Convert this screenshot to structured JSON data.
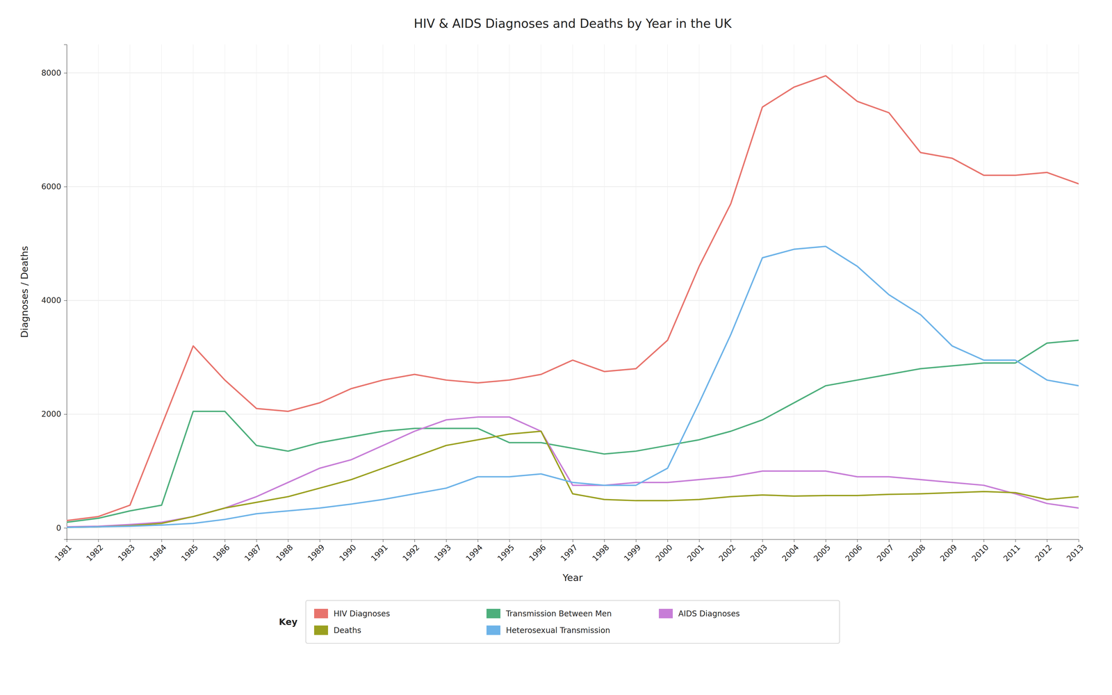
{
  "chart_data": {
    "type": "line",
    "title": "HIV & AIDS Diagnoses and Deaths by Year in the UK",
    "xlabel": "Year",
    "ylabel": "Diagnoses / Deaths",
    "legend_title": "Key",
    "x": [
      1981,
      1982,
      1983,
      1984,
      1985,
      1986,
      1987,
      1988,
      1989,
      1990,
      1991,
      1992,
      1993,
      1994,
      1995,
      1996,
      1997,
      1998,
      1999,
      2000,
      2001,
      2002,
      2003,
      2004,
      2005,
      2006,
      2007,
      2008,
      2009,
      2010,
      2011,
      2012,
      2013
    ],
    "series": [
      {
        "name": "HIV Diagnoses",
        "color": "#E8736C",
        "values": [
          130,
          200,
          400,
          1800,
          3200,
          2600,
          2100,
          2050,
          2200,
          2450,
          2600,
          2700,
          2600,
          2550,
          2600,
          2700,
          2950,
          2750,
          2800,
          3300,
          4600,
          5700,
          7400,
          7750,
          7950,
          7500,
          7300,
          6600,
          6500,
          6200,
          6200,
          6250,
          6050
        ]
      },
      {
        "name": "Transmission Between Men",
        "color": "#4DAF7C",
        "values": [
          100,
          170,
          300,
          400,
          2050,
          2050,
          1450,
          1350,
          1500,
          1600,
          1700,
          1750,
          1750,
          1750,
          1500,
          1500,
          1400,
          1300,
          1350,
          1450,
          1550,
          1700,
          1900,
          2200,
          2500,
          2600,
          2700,
          2800,
          2850,
          2900,
          2900,
          3250,
          3300
        ]
      },
      {
        "name": "AIDS Diagnoses",
        "color": "#C77DD7",
        "values": [
          20,
          30,
          60,
          100,
          200,
          350,
          550,
          800,
          1050,
          1200,
          1450,
          1700,
          1900,
          1950,
          1950,
          1700,
          750,
          750,
          800,
          800,
          850,
          900,
          1000,
          1000,
          1000,
          900,
          900,
          850,
          800,
          750,
          600,
          430,
          350
        ]
      },
      {
        "name": "Deaths",
        "color": "#9AA020",
        "values": [
          10,
          20,
          40,
          80,
          200,
          350,
          450,
          550,
          700,
          850,
          1050,
          1250,
          1450,
          1550,
          1650,
          1700,
          600,
          500,
          480,
          480,
          500,
          550,
          580,
          560,
          570,
          570,
          590,
          600,
          620,
          640,
          620,
          500,
          550
        ]
      },
      {
        "name": "Heterosexual Transmission",
        "color": "#6DB3E8",
        "values": [
          10,
          20,
          30,
          50,
          80,
          150,
          250,
          300,
          350,
          420,
          500,
          600,
          700,
          900,
          900,
          950,
          800,
          750,
          750,
          1050,
          2200,
          3400,
          4750,
          4900,
          4950,
          4600,
          4100,
          3750,
          3200,
          2950,
          2950,
          2600,
          2500
        ]
      }
    ],
    "xlim": [
      1981,
      2013
    ],
    "xticks": [
      1981,
      1982,
      1983,
      1984,
      1985,
      1986,
      1987,
      1988,
      1989,
      1990,
      1991,
      1992,
      1993,
      1994,
      1995,
      1996,
      1997,
      1998,
      1999,
      2000,
      2001,
      2002,
      2003,
      2004,
      2005,
      2006,
      2007,
      2008,
      2009,
      2010,
      2011,
      2012,
      2013
    ],
    "ylim": [
      -200,
      8500
    ],
    "yticks": [
      0,
      2000,
      4000,
      6000,
      8000
    ],
    "grid": true,
    "legend": "bottom"
  }
}
